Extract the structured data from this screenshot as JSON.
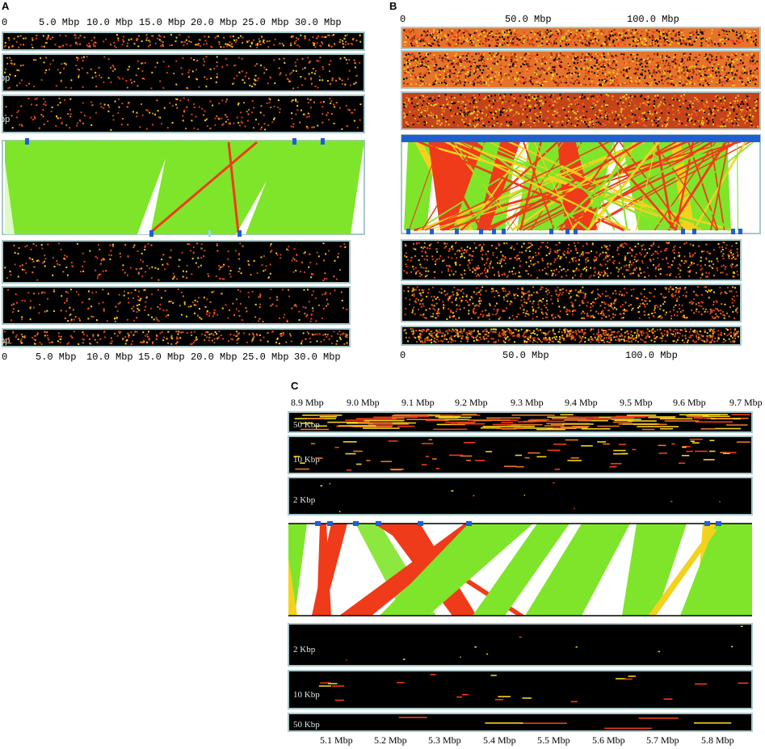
{
  "panels": [
    {
      "id": "A",
      "label": "A",
      "top_axis": [
        "0",
        "5.0 Mbp",
        "10.0 Mbp",
        "15.0 Mbp",
        "20.0 Mbp",
        "25.0 Mbp",
        "30.0 Mbp"
      ],
      "bottom_axis": [
        "0",
        "5.0 Mbp",
        "10.0 Mbp",
        "15.0 Mbp",
        "20.0 Mbp",
        "25.0 Mbp",
        "30.0 Mbp"
      ],
      "top_track_labels": [
        "",
        "bp",
        "bp"
      ],
      "bottom_track_labels": [
        "",
        "",
        "bp"
      ]
    },
    {
      "id": "B",
      "label": "B",
      "top_axis": [
        "0",
        "50.0 Mbp",
        "100.0 Mbp"
      ],
      "bottom_axis": [
        "0",
        "50.0 Mbp",
        "100.0 Mbp"
      ]
    },
    {
      "id": "C",
      "label": "C",
      "top_axis": [
        "8.9 Mbp",
        "9.0 Mbp",
        "9.1 Mbp",
        "9.2 Mbp",
        "9.3 Mbp",
        "9.4 Mbp",
        "9.5 Mbp",
        "9.6 Mbp",
        "9.7 Mbp"
      ],
      "bottom_axis": [
        "5.1 Mbp",
        "5.2 Mbp",
        "5.3 Mbp",
        "5.4 Mbp",
        "5.5 Mbp",
        "5.6 Mbp",
        "5.7 Mbp",
        "5.8 Mbp"
      ],
      "top_track_labels": [
        "50 Kbp",
        "10 Kbp",
        "2 Kbp"
      ],
      "bottom_track_labels": [
        "2 Kbp",
        "10 Kbp",
        "50 Kbp"
      ]
    }
  ],
  "colors": {
    "background": "#000000",
    "frame": "#a9c7c9",
    "collinear": "#7fe52a",
    "inverted": "#ef3b1a",
    "duplicated": "#f3d21e",
    "marker": "#1f5fd1",
    "density_mid": "#e6732a"
  }
}
